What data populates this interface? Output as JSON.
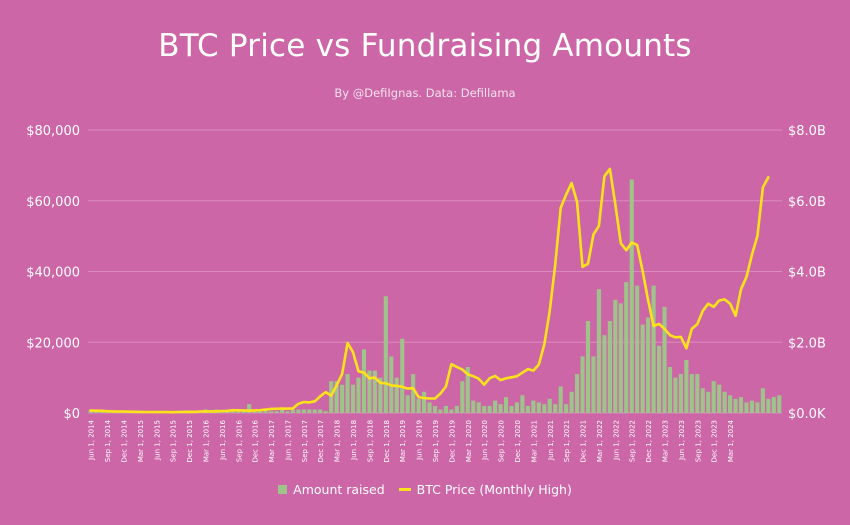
{
  "chart_data": {
    "type": "bar",
    "title": "BTC Price vs Fundraising Amounts",
    "subtitle": "By @DefiIgnas. Data: Defillama",
    "colors": {
      "background": "#cc66a6",
      "bars": "#9fc38a",
      "line": "#ffe21a",
      "text": "#ffffff",
      "grid": "#d98bbd"
    },
    "grid": true,
    "legend_position": "bottom",
    "left_axis": {
      "ylim": [
        0,
        80000
      ],
      "ticks": [
        "$0",
        "$20,000",
        "$40,000",
        "$60,000",
        "$80,000"
      ]
    },
    "right_axis": {
      "ylim": [
        0,
        8000000000
      ],
      "ticks": [
        "$0.0K",
        "$2.0B",
        "$4.0B",
        "$6.0B",
        "$8.0B"
      ]
    },
    "x_tick_labels": [
      "Jun 1, 2014",
      "Sep 1, 2014",
      "Dec 1, 2014",
      "Mar 1, 2015",
      "Jun 1, 2015",
      "Sep 1, 2015",
      "Dec 1, 2015",
      "Mar 1, 2016",
      "Jun 1, 2016",
      "Sep 1, 2016",
      "Dec 1, 2016",
      "Mar 1, 2017",
      "Jun 1, 2017",
      "Sep 1, 2017",
      "Dec 1, 2017",
      "Mar 1, 2018",
      "Jun 1, 2018",
      "Sep 1, 2018",
      "Dec 1, 2018",
      "Mar 1, 2019",
      "Jun 1, 2019",
      "Sep 1, 2019",
      "Dec 1, 2019",
      "Mar 1, 2020",
      "Jun 1, 2020",
      "Sep 1, 2020",
      "Dec 1, 2020",
      "Mar 1, 2021",
      "Jun 1, 2021",
      "Sep 1, 2021",
      "Dec 1, 2021",
      "Mar 1, 2022",
      "Jun 1, 2022",
      "Sep 1, 2022",
      "Dec 1, 2022",
      "Mar 1, 2023",
      "Jun 1, 2023",
      "Sep 1, 2023",
      "Dec 1, 2023",
      "Mar 1, 2024"
    ],
    "x_start": "2014-06",
    "series": [
      {
        "name": "Amount raised",
        "type": "bar",
        "axis": "right",
        "unit": "USD billions",
        "values": [
          0.1,
          0.05,
          0.05,
          0.05,
          0.05,
          0.05,
          0.05,
          0.05,
          0.05,
          0.05,
          0.05,
          0.05,
          0.05,
          0.05,
          0.05,
          0.05,
          0.05,
          0.05,
          0.05,
          0.05,
          0.05,
          0.1,
          0.05,
          0.1,
          0.05,
          0.1,
          0.1,
          0.05,
          0.05,
          0.25,
          0.1,
          0.05,
          0.1,
          0.05,
          0.05,
          0.1,
          0.05,
          0.1,
          0.1,
          0.1,
          0.1,
          0.1,
          0.1,
          0.05,
          0.9,
          0.9,
          0.8,
          1.1,
          0.8,
          1.0,
          1.8,
          1.2,
          1.2,
          1.0,
          3.3,
          1.6,
          1.0,
          2.1,
          0.5,
          1.1,
          0.4,
          0.6,
          0.3,
          0.2,
          0.1,
          0.2,
          0.1,
          0.2,
          0.9,
          1.3,
          0.35,
          0.3,
          0.2,
          0.2,
          0.35,
          0.25,
          0.45,
          0.2,
          0.3,
          0.5,
          0.2,
          0.35,
          0.3,
          0.25,
          0.4,
          0.25,
          0.75,
          0.25,
          0.6,
          1.1,
          1.6,
          2.6,
          1.6,
          3.5,
          2.2,
          2.6,
          3.2,
          3.1,
          3.7,
          6.6,
          3.6,
          2.5,
          2.7,
          3.6,
          1.9,
          3.0,
          1.3,
          1.0,
          1.1,
          1.5,
          1.1,
          1.1,
          0.7,
          0.6,
          0.9,
          0.8,
          0.6,
          0.5,
          0.4,
          0.45,
          0.3,
          0.35,
          0.3,
          0.7,
          0.4,
          0.45,
          0.5
        ]
      },
      {
        "name": "BTC Price (Monthly High)",
        "type": "line",
        "axis": "left",
        "unit": "USD",
        "values": [
          680,
          660,
          620,
          520,
          460,
          430,
          410,
          380,
          330,
          300,
          290,
          270,
          260,
          280,
          250,
          240,
          270,
          300,
          330,
          320,
          430,
          460,
          470,
          440,
          560,
          600,
          780,
          760,
          730,
          650,
          740,
          780,
          970,
          1150,
          1200,
          1250,
          1220,
          1300,
          2600,
          3100,
          3000,
          3300,
          4700,
          5900,
          4900,
          7800,
          11000,
          19800,
          17200,
          11800,
          11400,
          9800,
          10000,
          8500,
          8400,
          7800,
          7700,
          7400,
          6900,
          7000,
          4500,
          4200,
          4100,
          4100,
          5500,
          7500,
          13800,
          13000,
          12300,
          10900,
          10400,
          9700,
          8000,
          9800,
          10500,
          9300,
          9800,
          10100,
          10400,
          11400,
          12400,
          12000,
          13700,
          19400,
          29000,
          41900,
          58000,
          61700,
          65000,
          59600,
          41300,
          42200,
          50500,
          52900,
          66900,
          69000,
          59000,
          48000,
          46000,
          48200,
          47500,
          40000,
          31900,
          24600,
          25200,
          23800,
          22000,
          21400,
          21500,
          18300,
          23800,
          25100,
          28900,
          30900,
          30000,
          31800,
          32100,
          30900,
          27500,
          35000,
          38500,
          44700,
          50000,
          63800,
          66600
        ]
      }
    ]
  }
}
